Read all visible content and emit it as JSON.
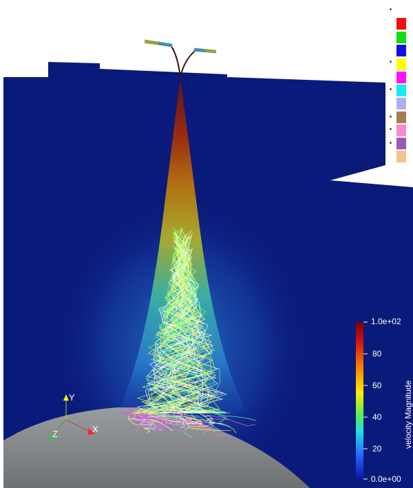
{
  "colorbar": {
    "title": "velocity Magnitude",
    "max_label": "1.0e+02",
    "min_label": "0.0e+00",
    "ticks": [
      "80",
      "60",
      "40",
      "20"
    ],
    "range": [
      0,
      100
    ]
  },
  "orientation_axes": {
    "x": "X",
    "y": "Y",
    "z": "Z"
  },
  "particle_legend": {
    "colors": [
      "#ee1111",
      "#11dd11",
      "#1111dd",
      "#ffff00",
      "#ff11ff",
      "#11eeee",
      "#aab0f0",
      "#a67c52",
      "#ff88cc",
      "#9b59b6",
      "#f5c18c"
    ]
  },
  "scene": {
    "background_color": "#ffffff",
    "domain_color": "#0a1a7a",
    "ground_color": "#8a8d90"
  }
}
